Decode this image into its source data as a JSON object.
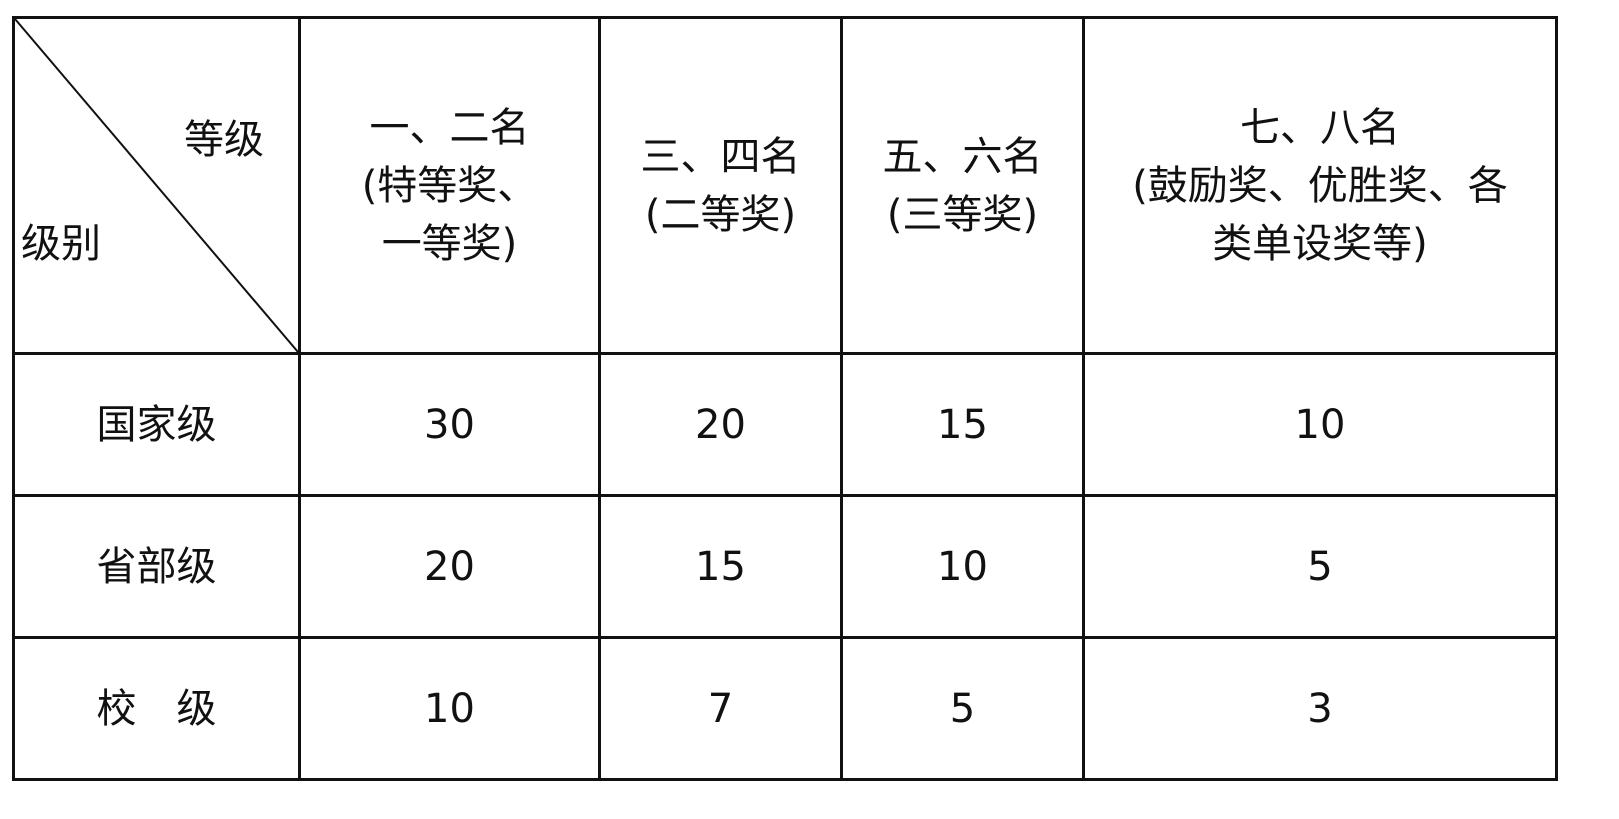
{
  "table": {
    "corner": {
      "top_right": "等级",
      "bottom_left": "级别"
    },
    "columns": [
      [
        "一、二名",
        "(特等奖、",
        "一等奖)"
      ],
      [
        "三、四名",
        "(二等奖)"
      ],
      [
        "五、六名",
        "(三等奖)"
      ],
      [
        "七、八名",
        "(鼓励奖、优胜奖、各",
        "类单设奖等)"
      ]
    ],
    "rows": [
      {
        "label": "国家级",
        "values": [
          "30",
          "20",
          "15",
          "10"
        ]
      },
      {
        "label": "省部级",
        "values": [
          "20",
          "15",
          "10",
          "5"
        ]
      },
      {
        "label": "校　级",
        "values": [
          "10",
          "7",
          "5",
          "3"
        ]
      }
    ]
  }
}
